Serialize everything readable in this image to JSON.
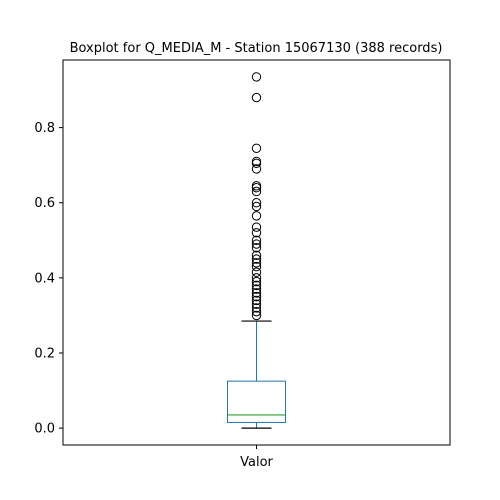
{
  "chart_data": {
    "type": "boxplot",
    "title": "Boxplot for Q_MEDIA_M - Station 15067130 (388 records)",
    "xlabel": "",
    "ylabel": "",
    "categories": [
      "Valor"
    ],
    "ylim": [
      -0.045,
      0.98
    ],
    "yticks": [
      0.0,
      0.2,
      0.4,
      0.6,
      0.8
    ],
    "ytick_labels": [
      "0.0",
      "0.2",
      "0.4",
      "0.6",
      "0.8"
    ],
    "grid": false,
    "colors": {
      "box": "#1f77b4",
      "median": "#2ca02c",
      "whisker": "#1f77b4",
      "cap": "#000000",
      "flier": "#000000"
    },
    "boxes": [
      {
        "name": "Valor",
        "whisker_low": 0.0,
        "q1": 0.015,
        "median": 0.035,
        "q3": 0.125,
        "whisker_high": 0.285,
        "fliers": [
          0.935,
          0.88,
          0.745,
          0.71,
          0.705,
          0.69,
          0.645,
          0.64,
          0.63,
          0.6,
          0.59,
          0.565,
          0.535,
          0.52,
          0.5,
          0.49,
          0.48,
          0.46,
          0.45,
          0.44,
          0.43,
          0.415,
          0.4,
          0.39,
          0.38,
          0.37,
          0.36,
          0.35,
          0.34,
          0.33,
          0.32,
          0.31,
          0.3
        ]
      }
    ]
  }
}
